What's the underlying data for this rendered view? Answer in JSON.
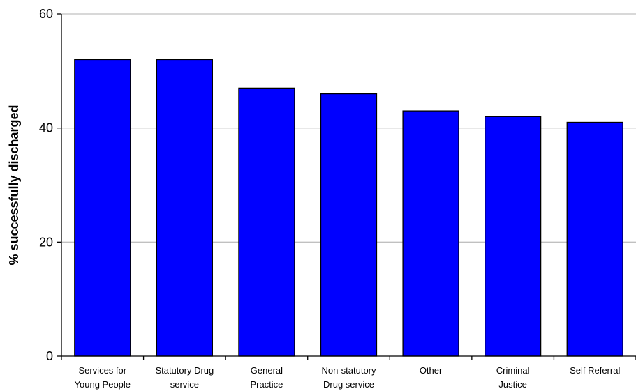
{
  "chart_data": {
    "type": "bar",
    "title": "",
    "xlabel": "",
    "ylabel": "% successfully discharged",
    "ylim": [
      0,
      60
    ],
    "yticks": [
      0,
      20,
      40,
      60
    ],
    "grid": true,
    "categories": [
      [
        "Services for",
        "Young People"
      ],
      [
        "Statutory Drug",
        "service"
      ],
      [
        "General",
        "Practice"
      ],
      [
        "Non-statutory",
        "Drug service"
      ],
      [
        "Other"
      ],
      [
        "Criminal",
        "Justice"
      ],
      [
        "Self Referral"
      ]
    ],
    "values": [
      52,
      52,
      47,
      46,
      43,
      42,
      41
    ],
    "colors": {
      "bar": "#0000ff",
      "bar_edge": "#000000",
      "grid": "#c0c0c0",
      "axis": "#000000"
    }
  }
}
